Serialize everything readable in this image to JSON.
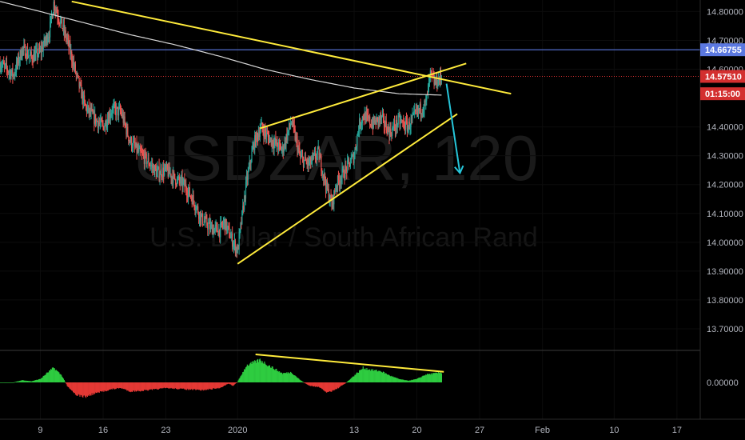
{
  "watermark": {
    "symbol": "USDZAR, 120",
    "description": "U.S. Dollar / South African Rand"
  },
  "chart_data": {
    "type": "candlestick",
    "price_axis": {
      "ticks": [
        "14.80000",
        "14.70000",
        "14.60000",
        "14.40000",
        "14.30000",
        "14.20000",
        "14.10000",
        "14.00000",
        "13.90000",
        "13.80000",
        "13.70000"
      ],
      "ylim": [
        13.625,
        14.84
      ]
    },
    "time_axis": {
      "ticks": [
        {
          "label": "9",
          "day": 0
        },
        {
          "label": "16",
          "day": 7
        },
        {
          "label": "23",
          "day": 14
        },
        {
          "label": "2020",
          "day": 22
        },
        {
          "label": "13",
          "day": 35
        },
        {
          "label": "20",
          "day": 42
        },
        {
          "label": "27",
          "day": 49
        },
        {
          "label": "Feb",
          "day": 56
        },
        {
          "label": "10",
          "day": 64
        },
        {
          "label": "17",
          "day": 71
        }
      ],
      "xlim": [
        -4.5,
        73.6
      ]
    },
    "price_tags": [
      {
        "label": "14.66755",
        "price": 14.66755,
        "color": "#5b78e0",
        "role": "horizontal-line-level"
      },
      {
        "label": "14.57510",
        "price": 14.5751,
        "color": "#d32f2f",
        "role": "last-price"
      },
      {
        "label": "01:15:00",
        "price": 14.515,
        "color": "#d32f2f",
        "role": "bar-countdown"
      }
    ],
    "oscillator": {
      "zero_label": "0.00000"
    },
    "last_day": 44.8,
    "drawings": [
      {
        "name": "upper-trendline",
        "color": "#ffeb3b",
        "from": {
          "day": 3.5,
          "price": 14.835
        },
        "to": {
          "day": 52.5,
          "price": 14.515
        }
      },
      {
        "name": "wedge-upper-line",
        "color": "#ffeb3b",
        "from": {
          "day": 24.5,
          "price": 14.395
        },
        "to": {
          "day": 47.5,
          "price": 14.62
        }
      },
      {
        "name": "wedge-lower-line",
        "color": "#ffeb3b",
        "from": {
          "day": 22,
          "price": 13.925
        },
        "to": {
          "day": 46.5,
          "price": 14.445
        }
      },
      {
        "name": "arrow-down",
        "color": "#26c6da",
        "from": {
          "day": 45.3,
          "price": 14.55
        },
        "to": {
          "day": 46.8,
          "price": 14.24
        }
      }
    ],
    "anchors": [
      [
        -4.5,
        14.62
      ],
      [
        -3,
        14.58
      ],
      [
        -2,
        14.67
      ],
      [
        -1,
        14.64
      ],
      [
        0,
        14.66
      ],
      [
        1,
        14.73
      ],
      [
        1.5,
        14.83
      ],
      [
        2.4,
        14.75
      ],
      [
        3,
        14.7
      ],
      [
        4,
        14.58
      ],
      [
        5,
        14.47
      ],
      [
        6,
        14.43
      ],
      [
        7,
        14.4
      ],
      [
        8,
        14.46
      ],
      [
        9,
        14.45
      ],
      [
        10,
        14.35
      ],
      [
        11,
        14.31
      ],
      [
        12,
        14.28
      ],
      [
        13,
        14.24
      ],
      [
        14,
        14.25
      ],
      [
        15,
        14.22
      ],
      [
        16,
        14.2
      ],
      [
        17,
        14.15
      ],
      [
        18,
        14.08
      ],
      [
        19,
        14.05
      ],
      [
        20,
        14.04
      ],
      [
        20.5,
        14.07
      ],
      [
        21.5,
        14.0
      ],
      [
        22,
        13.97
      ],
      [
        22.5,
        14.09
      ],
      [
        23,
        14.21
      ],
      [
        23.8,
        14.34
      ],
      [
        24.6,
        14.4
      ],
      [
        25.5,
        14.36
      ],
      [
        27,
        14.32
      ],
      [
        28,
        14.42
      ],
      [
        29,
        14.29
      ],
      [
        30,
        14.27
      ],
      [
        31,
        14.31
      ],
      [
        32,
        14.18
      ],
      [
        32.5,
        14.13
      ],
      [
        33,
        14.2
      ],
      [
        34,
        14.25
      ],
      [
        35,
        14.3
      ],
      [
        35.5,
        14.4
      ],
      [
        36,
        14.44
      ],
      [
        37,
        14.41
      ],
      [
        38,
        14.43
      ],
      [
        39,
        14.38
      ],
      [
        40,
        14.42
      ],
      [
        41,
        14.4
      ],
      [
        42,
        14.45
      ],
      [
        43,
        14.48
      ],
      [
        43.5,
        14.58
      ],
      [
        44,
        14.55
      ],
      [
        44.8,
        14.5751
      ]
    ],
    "ma_anchors": [
      [
        -4.5,
        14.835
      ],
      [
        0,
        14.8
      ],
      [
        5,
        14.76
      ],
      [
        10,
        14.72
      ],
      [
        15,
        14.685
      ],
      [
        20,
        14.645
      ],
      [
        25,
        14.6
      ],
      [
        30,
        14.565
      ],
      [
        35,
        14.535
      ],
      [
        40,
        14.515
      ],
      [
        43,
        14.512
      ],
      [
        44.8,
        14.51
      ]
    ],
    "osc_anchors": [
      [
        -4.5,
        0
      ],
      [
        -3,
        0
      ],
      [
        -2,
        0.2
      ],
      [
        -1,
        0.1
      ],
      [
        0,
        0.3
      ],
      [
        1,
        1.0
      ],
      [
        1.5,
        1.3
      ],
      [
        2.4,
        0.6
      ],
      [
        3,
        -0.3
      ],
      [
        4,
        -1.1
      ],
      [
        5,
        -1.3
      ],
      [
        6,
        -1.0
      ],
      [
        7,
        -0.8
      ],
      [
        8,
        -0.6
      ],
      [
        9,
        -0.5
      ],
      [
        10,
        -0.8
      ],
      [
        12,
        -0.7
      ],
      [
        14,
        -0.5
      ],
      [
        16,
        -0.6
      ],
      [
        18,
        -0.7
      ],
      [
        20,
        -0.5
      ],
      [
        21,
        -0.1
      ],
      [
        21.5,
        -0.3
      ],
      [
        22,
        0.05
      ],
      [
        23,
        1.5
      ],
      [
        24.5,
        2.0
      ],
      [
        25.5,
        1.5
      ],
      [
        27,
        0.8
      ],
      [
        28,
        0.9
      ],
      [
        29,
        0.2
      ],
      [
        30,
        -0.3
      ],
      [
        31,
        -0.4
      ],
      [
        32,
        -0.9
      ],
      [
        33,
        -0.6
      ],
      [
        34,
        -0.1
      ],
      [
        35,
        0.6
      ],
      [
        36,
        1.3
      ],
      [
        37,
        1.1
      ],
      [
        38,
        1.0
      ],
      [
        39,
        0.6
      ],
      [
        40,
        0.3
      ],
      [
        41,
        0.15
      ],
      [
        42,
        0.3
      ],
      [
        43,
        0.7
      ],
      [
        44,
        0.8
      ],
      [
        44.8,
        0.9
      ]
    ],
    "osc_divergence": {
      "color": "#ffeb3b",
      "from": {
        "day": 24,
        "value": 2.5
      },
      "to": {
        "day": 45,
        "value": 0.95
      }
    },
    "colors": {
      "up": "#26a69a",
      "down": "#ef5350",
      "ma": "#d9d9d9",
      "osc_pos": "#2ecc40",
      "osc_neg": "#e53935",
      "grid": "#0c0c0c",
      "divider": "#3a3a3a",
      "last_price_line": "#d32f2f",
      "level_line": "#5b78e0"
    }
  }
}
